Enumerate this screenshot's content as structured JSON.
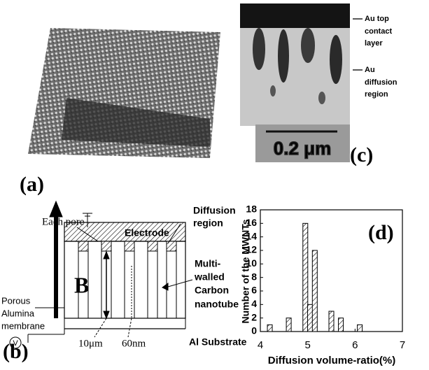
{
  "panel_a": {
    "label": "(a)"
  },
  "panel_c": {
    "label": "(c)",
    "scale_bar": "0.2 μm",
    "top_layer": [
      "Au top",
      "contact",
      "layer"
    ],
    "diffusion": [
      "Au",
      "diffusion",
      "region"
    ]
  },
  "panel_b": {
    "label": "(b)",
    "each_pore": "Each pore",
    "electrode": "Electrode",
    "diffusion": [
      "Diffusion",
      "region"
    ],
    "field": "B",
    "nanotube": [
      "Multi-",
      "walled",
      "Carbon",
      "nanotube"
    ],
    "membrane": [
      "Porous",
      "Alumina",
      "membrane"
    ],
    "voltage": "V",
    "length": "10μm",
    "diameter": "60nm",
    "substrate": "Al Substrate"
  },
  "chart_data": {
    "type": "bar",
    "label": "(d)",
    "x_label": "Diffusion volume-ratio(%)",
    "y_label": "Number of the MWNTs",
    "x": [
      4.2,
      4.6,
      4.95,
      5.05,
      5.15,
      5.5,
      5.7,
      6.1
    ],
    "values": [
      1,
      2,
      16,
      4,
      12,
      3,
      2,
      1
    ],
    "color": "#000000",
    "xlim": [
      4,
      7
    ],
    "xticks": [
      4,
      5,
      6,
      7
    ],
    "ylim": [
      0,
      18
    ],
    "yticks": [
      0,
      2,
      4,
      6,
      8,
      10,
      12,
      14,
      16,
      18
    ]
  }
}
